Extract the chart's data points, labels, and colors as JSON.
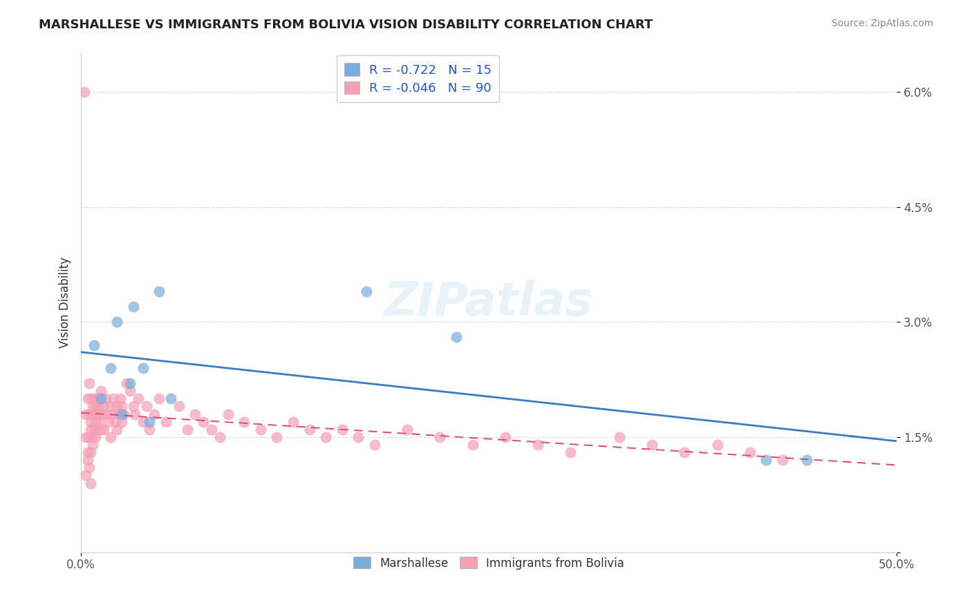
{
  "title": "MARSHALLESE VS IMMIGRANTS FROM BOLIVIA VISION DISABILITY CORRELATION CHART",
  "source": "Source: ZipAtlas.com",
  "xlabel": "",
  "ylabel": "Vision Disability",
  "xlim": [
    0.0,
    0.5
  ],
  "ylim": [
    0.0,
    0.065
  ],
  "yticks": [
    0.0,
    0.015,
    0.03,
    0.045,
    0.06
  ],
  "ytick_labels": [
    "",
    "1.5%",
    "3.0%",
    "4.5%",
    "6.0%"
  ],
  "xticks": [
    0.0,
    0.5
  ],
  "xtick_labels": [
    "0.0%",
    "50.0%"
  ],
  "legend_r_blue": "-0.722",
  "legend_n_blue": "15",
  "legend_r_pink": "-0.046",
  "legend_n_pink": "90",
  "blue_color": "#7aaddb",
  "pink_color": "#f4a0b5",
  "trendline_blue_color": "#3a7abf",
  "trendline_pink_color": "#d9536e",
  "watermark": "ZIPatlas",
  "blue_scatter_x": [
    0.008,
    0.012,
    0.018,
    0.022,
    0.025,
    0.03,
    0.032,
    0.038,
    0.042,
    0.048,
    0.055,
    0.175,
    0.23,
    0.42,
    0.445
  ],
  "blue_scatter_y": [
    0.027,
    0.02,
    0.024,
    0.03,
    0.018,
    0.022,
    0.032,
    0.024,
    0.017,
    0.034,
    0.02,
    0.034,
    0.028,
    0.012,
    0.012
  ],
  "pink_scatter_x": [
    0.002,
    0.003,
    0.003,
    0.004,
    0.004,
    0.005,
    0.005,
    0.005,
    0.006,
    0.006,
    0.006,
    0.006,
    0.007,
    0.007,
    0.007,
    0.007,
    0.008,
    0.008,
    0.008,
    0.009,
    0.009,
    0.009,
    0.01,
    0.01,
    0.01,
    0.011,
    0.011,
    0.012,
    0.012,
    0.013,
    0.014,
    0.014,
    0.015,
    0.016,
    0.017,
    0.018,
    0.018,
    0.019,
    0.02,
    0.021,
    0.022,
    0.022,
    0.023,
    0.024,
    0.025,
    0.025,
    0.026,
    0.028,
    0.03,
    0.032,
    0.033,
    0.035,
    0.038,
    0.04,
    0.042,
    0.045,
    0.048,
    0.052,
    0.06,
    0.065,
    0.07,
    0.075,
    0.08,
    0.085,
    0.09,
    0.1,
    0.11,
    0.12,
    0.13,
    0.14,
    0.15,
    0.16,
    0.17,
    0.18,
    0.2,
    0.22,
    0.24,
    0.26,
    0.28,
    0.3,
    0.33,
    0.35,
    0.37,
    0.39,
    0.41,
    0.43,
    0.003,
    0.004,
    0.005,
    0.006
  ],
  "pink_scatter_y": [
    0.06,
    0.018,
    0.015,
    0.02,
    0.013,
    0.022,
    0.018,
    0.015,
    0.02,
    0.017,
    0.016,
    0.013,
    0.019,
    0.018,
    0.015,
    0.014,
    0.02,
    0.018,
    0.016,
    0.019,
    0.017,
    0.015,
    0.02,
    0.018,
    0.016,
    0.019,
    0.017,
    0.021,
    0.016,
    0.018,
    0.019,
    0.016,
    0.02,
    0.018,
    0.017,
    0.019,
    0.015,
    0.018,
    0.02,
    0.017,
    0.019,
    0.016,
    0.018,
    0.02,
    0.017,
    0.019,
    0.018,
    0.022,
    0.021,
    0.019,
    0.018,
    0.02,
    0.017,
    0.019,
    0.016,
    0.018,
    0.02,
    0.017,
    0.019,
    0.016,
    0.018,
    0.017,
    0.016,
    0.015,
    0.018,
    0.017,
    0.016,
    0.015,
    0.017,
    0.016,
    0.015,
    0.016,
    0.015,
    0.014,
    0.016,
    0.015,
    0.014,
    0.015,
    0.014,
    0.013,
    0.015,
    0.014,
    0.013,
    0.014,
    0.013,
    0.012,
    0.01,
    0.012,
    0.011,
    0.009
  ],
  "background_color": "#ffffff",
  "grid_color": "#cccccc"
}
